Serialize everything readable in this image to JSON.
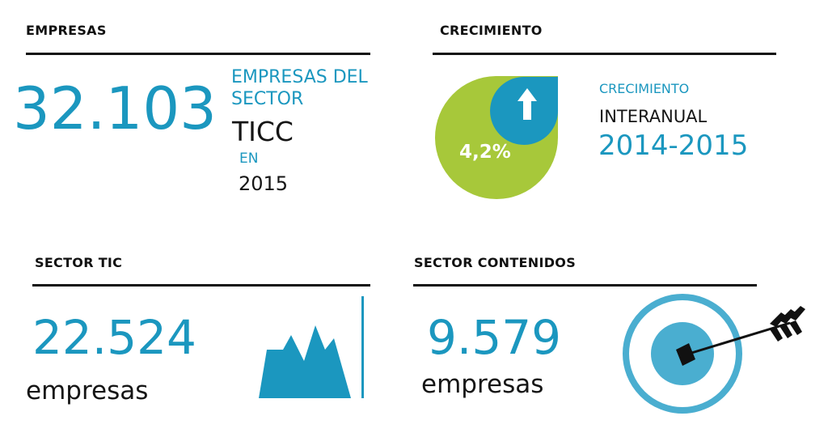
{
  "colors": {
    "blue": "#1b97bf",
    "green": "#a7c83a",
    "dark": "#151515"
  },
  "empresas": {
    "header": "EMPRESAS",
    "number": "32.103",
    "line1": "EMPRESAS DEL",
    "line2": "SECTOR",
    "line3": "TICC",
    "line4": "EN",
    "line5": "2015"
  },
  "crecimiento": {
    "header": "CRECIMIENTO",
    "percent": "4,2%",
    "label1": "CRECIMIENTO",
    "label2": "INTERANUAL",
    "label3": "2014-2015",
    "icon": "up-arrow-icon"
  },
  "sector_tic": {
    "header": "SECTOR TIC",
    "number": "22.524",
    "unit": "empresas",
    "icon": "mountain-chart-icon"
  },
  "sector_contenidos": {
    "header": "SECTOR CONTENIDOS",
    "number": "9.579",
    "unit": "empresas",
    "icon": "target-arrow-icon"
  }
}
